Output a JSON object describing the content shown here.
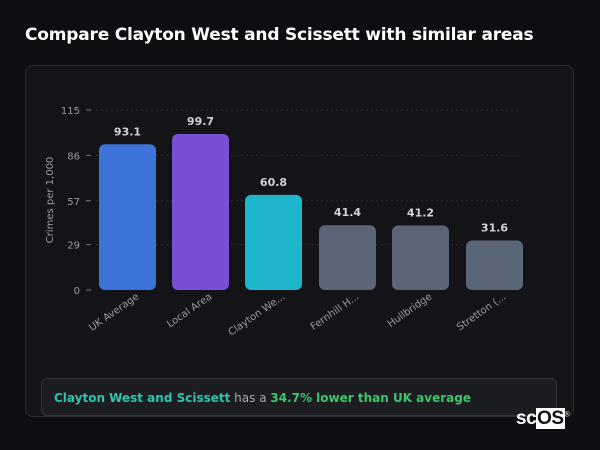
{
  "title": "Compare Clayton West and Scissett with similar areas",
  "chart_data": {
    "type": "bar",
    "categories": [
      "UK Average",
      "Local Area",
      "Clayton We...",
      "Fernhill H...",
      "Hullbridge",
      "Stretton (..."
    ],
    "values": [
      93.1,
      99.7,
      60.8,
      41.4,
      41.2,
      31.6
    ],
    "colors": [
      "#3b73d9",
      "#7b4fd3",
      "#1fb6cc",
      "#5b6578",
      "#5b6578",
      "#5b6578"
    ],
    "ylabel": "Crimes per 1,000",
    "yticks": [
      0,
      29,
      57,
      86,
      115
    ],
    "ylim": [
      0,
      115
    ],
    "grid": true
  },
  "summary": {
    "area": "Clayton West and Scissett",
    "middle": " has a ",
    "result": "34.7% lower than UK average"
  },
  "logo": {
    "sc": "sc",
    "os": "OS",
    "mark": "®"
  }
}
